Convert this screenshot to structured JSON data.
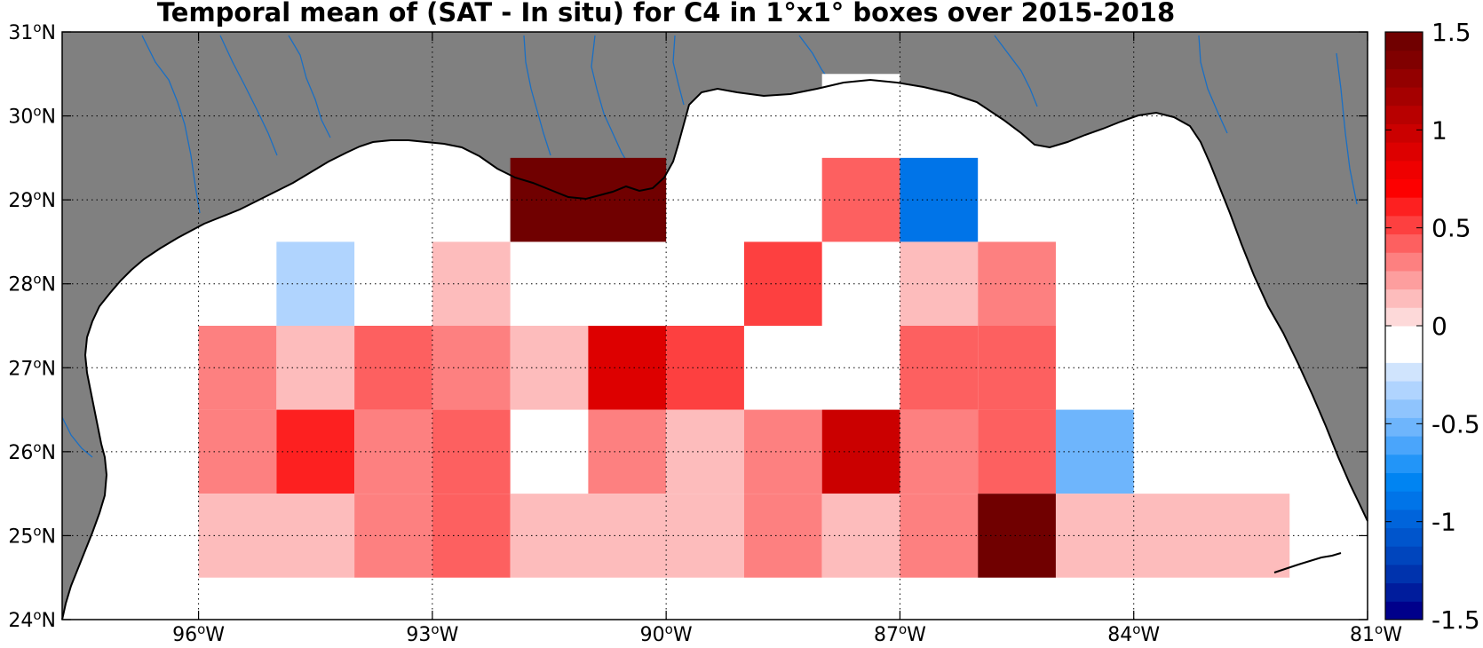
{
  "title": "Temporal mean of (SAT - In situ) for C4 in 1°x1° boxes over 2015-2018",
  "colors": {
    "land": "#808080",
    "water": "#ffffff",
    "river": "#1a6fc4",
    "coast": "#000000"
  },
  "x_ticks": [
    {
      "lon": -96,
      "deg": "96",
      "sup": "o",
      "hem": "W"
    },
    {
      "lon": -93,
      "deg": "93",
      "sup": "o",
      "hem": "W"
    },
    {
      "lon": -90,
      "deg": "90",
      "sup": "o",
      "hem": "W"
    },
    {
      "lon": -87,
      "deg": "87",
      "sup": "o",
      "hem": "W"
    },
    {
      "lon": -84,
      "deg": "84",
      "sup": "o",
      "hem": "W"
    },
    {
      "lon": -81,
      "deg": "81",
      "sup": "o",
      "hem": "W"
    }
  ],
  "y_ticks": [
    {
      "lat": 31,
      "deg": "31",
      "sup": "o",
      "hem": "N"
    },
    {
      "lat": 30,
      "deg": "30",
      "sup": "o",
      "hem": "N"
    },
    {
      "lat": 29,
      "deg": "29",
      "sup": "o",
      "hem": "N"
    },
    {
      "lat": 28,
      "deg": "28",
      "sup": "o",
      "hem": "N"
    },
    {
      "lat": 27,
      "deg": "27",
      "sup": "o",
      "hem": "N"
    },
    {
      "lat": 26,
      "deg": "26",
      "sup": "o",
      "hem": "N"
    },
    {
      "lat": 25,
      "deg": "25",
      "sup": "o",
      "hem": "N"
    },
    {
      "lat": 24,
      "deg": "24",
      "sup": "o",
      "hem": "N"
    }
  ],
  "chart_data": {
    "type": "heatmap",
    "title": "Temporal mean of (SAT - In situ) for C4 in 1°x1° boxes over 2015-2018",
    "xlim": [
      -97.75,
      -81
    ],
    "ylim": [
      24,
      31
    ],
    "cell_size_deg": 1,
    "cells": [
      {
        "lon": [
          -88,
          -87
        ],
        "lat": [
          29.5,
          30.5
        ],
        "value": -0.1
      },
      {
        "lon": [
          -92,
          -90
        ],
        "lat": [
          28.5,
          29.5
        ],
        "value": 1.5
      },
      {
        "lon": [
          -89,
          -88
        ],
        "lat": [
          28.5,
          29.5
        ],
        "value": -0.1
      },
      {
        "lon": [
          -88,
          -87
        ],
        "lat": [
          28.5,
          29.5
        ],
        "value": 0.4
      },
      {
        "lon": [
          -87,
          -86
        ],
        "lat": [
          28.5,
          29.5
        ],
        "value": -0.9
      },
      {
        "lon": [
          -95,
          -94
        ],
        "lat": [
          27.5,
          28.5
        ],
        "value": -0.3
      },
      {
        "lon": [
          -93,
          -92
        ],
        "lat": [
          27.5,
          28.5
        ],
        "value": 0.1
      },
      {
        "lon": [
          -90,
          -89
        ],
        "lat": [
          27.5,
          28.5
        ],
        "value": -0.1
      },
      {
        "lon": [
          -89,
          -88
        ],
        "lat": [
          27.5,
          28.5
        ],
        "value": 0.5
      },
      {
        "lon": [
          -87,
          -86
        ],
        "lat": [
          27.5,
          28.5
        ],
        "value": 0.1
      },
      {
        "lon": [
          -86,
          -85
        ],
        "lat": [
          27.5,
          28.5
        ],
        "value": 0.3
      },
      {
        "lon": [
          -96,
          -95
        ],
        "lat": [
          26.5,
          27.5
        ],
        "value": 0.3
      },
      {
        "lon": [
          -95,
          -94
        ],
        "lat": [
          26.5,
          27.5
        ],
        "value": 0.1
      },
      {
        "lon": [
          -94,
          -93
        ],
        "lat": [
          26.5,
          27.5
        ],
        "value": 0.45
      },
      {
        "lon": [
          -93,
          -92
        ],
        "lat": [
          26.5,
          27.5
        ],
        "value": 0.3
      },
      {
        "lon": [
          -92,
          -91
        ],
        "lat": [
          26.5,
          27.5
        ],
        "value": 0.15
      },
      {
        "lon": [
          -91,
          -90
        ],
        "lat": [
          26.5,
          27.5
        ],
        "value": 0.85
      },
      {
        "lon": [
          -90,
          -89
        ],
        "lat": [
          26.5,
          27.5
        ],
        "value": 0.55
      },
      {
        "lon": [
          -87,
          -86
        ],
        "lat": [
          26.5,
          27.5
        ],
        "value": 0.4
      },
      {
        "lon": [
          -86,
          -85
        ],
        "lat": [
          26.5,
          27.5
        ],
        "value": 0.4
      },
      {
        "lon": [
          -96,
          -95
        ],
        "lat": [
          25.5,
          26.5
        ],
        "value": 0.3
      },
      {
        "lon": [
          -95,
          -94
        ],
        "lat": [
          25.5,
          26.5
        ],
        "value": 0.65
      },
      {
        "lon": [
          -94,
          -93
        ],
        "lat": [
          25.5,
          26.5
        ],
        "value": 0.3
      },
      {
        "lon": [
          -93,
          -92
        ],
        "lat": [
          25.5,
          26.5
        ],
        "value": 0.4
      },
      {
        "lon": [
          -91,
          -90
        ],
        "lat": [
          25.5,
          26.5
        ],
        "value": 0.3
      },
      {
        "lon": [
          -90,
          -89
        ],
        "lat": [
          25.5,
          26.5
        ],
        "value": 0.15
      },
      {
        "lon": [
          -89,
          -88
        ],
        "lat": [
          25.5,
          26.5
        ],
        "value": 0.3
      },
      {
        "lon": [
          -88,
          -87
        ],
        "lat": [
          25.5,
          26.5
        ],
        "value": 1.0
      },
      {
        "lon": [
          -87,
          -86
        ],
        "lat": [
          25.5,
          26.5
        ],
        "value": 0.3
      },
      {
        "lon": [
          -86,
          -85
        ],
        "lat": [
          25.5,
          26.5
        ],
        "value": 0.4
      },
      {
        "lon": [
          -85,
          -84
        ],
        "lat": [
          25.5,
          26.5
        ],
        "value": -0.55
      },
      {
        "lon": [
          -97,
          -96
        ],
        "lat": [
          24.5,
          25.5
        ],
        "value": -0.1
      },
      {
        "lon": [
          -96,
          -94
        ],
        "lat": [
          24.5,
          25.5
        ],
        "value": 0.15
      },
      {
        "lon": [
          -94,
          -93
        ],
        "lat": [
          24.5,
          25.5
        ],
        "value": 0.3
      },
      {
        "lon": [
          -93,
          -92
        ],
        "lat": [
          24.5,
          25.5
        ],
        "value": 0.4
      },
      {
        "lon": [
          -92,
          -90
        ],
        "lat": [
          24.5,
          25.5
        ],
        "value": 0.15
      },
      {
        "lon": [
          -90,
          -89
        ],
        "lat": [
          24.5,
          25.5
        ],
        "value": 0.15
      },
      {
        "lon": [
          -89,
          -88
        ],
        "lat": [
          24.5,
          25.5
        ],
        "value": 0.3
      },
      {
        "lon": [
          -88,
          -87
        ],
        "lat": [
          24.5,
          25.5
        ],
        "value": 0.15
      },
      {
        "lon": [
          -87,
          -86
        ],
        "lat": [
          24.5,
          25.5
        ],
        "value": 0.3
      },
      {
        "lon": [
          -86,
          -85
        ],
        "lat": [
          24.5,
          25.5
        ],
        "value": 1.5
      },
      {
        "lon": [
          -85,
          -82
        ],
        "lat": [
          24.5,
          25.5
        ],
        "value": 0.15
      }
    ],
    "colorbar": {
      "range": [
        -1.5,
        1.5
      ],
      "ticks": [
        {
          "value": 1.5,
          "label": "1.5"
        },
        {
          "value": 1.0,
          "label": "1"
        },
        {
          "value": 0.5,
          "label": "0.5"
        },
        {
          "value": 0.0,
          "label": "0"
        },
        {
          "value": -0.5,
          "label": "-0.5"
        },
        {
          "value": -1.0,
          "label": "-1"
        },
        {
          "value": -1.5,
          "label": "-1.5"
        }
      ],
      "steps": [
        "#00008b",
        "#001c9c",
        "#0033ad",
        "#0045bd",
        "#0055cc",
        "#0064db",
        "#0074e8",
        "#0084f2",
        "#2295f8",
        "#4aa5fb",
        "#6eb5fc",
        "#8fc4fd",
        "#b0d4fe",
        "#d0e4fd",
        "#ffffff",
        "#ffffff",
        "#fdd9d9",
        "#fdbcbc",
        "#fd9e9e",
        "#fd8080",
        "#fd6060",
        "#fd4040",
        "#fd2020",
        "#fd0000",
        "#ef0000",
        "#dd0000",
        "#cb0000",
        "#b80000",
        "#a50000",
        "#930000",
        "#800000",
        "#700000"
      ]
    }
  }
}
